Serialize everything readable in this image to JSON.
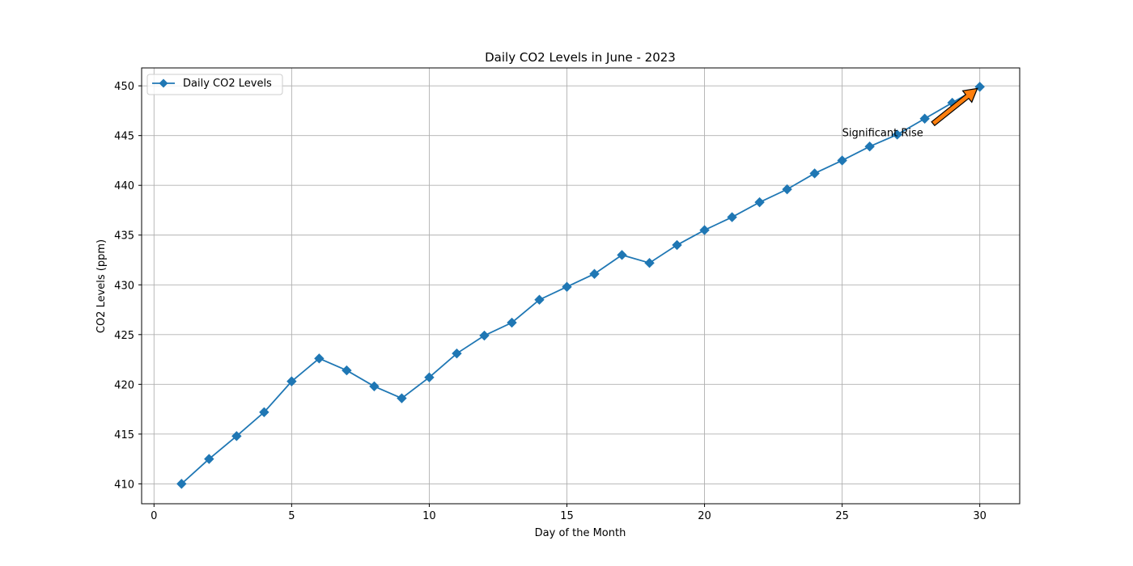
{
  "chart_data": {
    "type": "line",
    "title": "Daily CO2 Levels in June - 2023",
    "xlabel": "Day of the Month",
    "ylabel": "CO2 Levels (ppm)",
    "xlim": [
      -0.45,
      31.45
    ],
    "ylim": [
      408.0,
      451.8
    ],
    "xticks": [
      0,
      5,
      10,
      15,
      20,
      25,
      30
    ],
    "yticks": [
      410,
      415,
      420,
      425,
      430,
      435,
      440,
      445,
      450
    ],
    "grid": true,
    "legend_position": "upper-left",
    "series": [
      {
        "name": "Daily CO2 Levels",
        "color": "#1f77b4",
        "marker": "diamond",
        "x": [
          1,
          2,
          3,
          4,
          5,
          6,
          7,
          8,
          9,
          10,
          11,
          12,
          13,
          14,
          15,
          16,
          17,
          18,
          19,
          20,
          21,
          22,
          23,
          24,
          25,
          26,
          27,
          28,
          29,
          30
        ],
        "y": [
          410.0,
          412.5,
          414.8,
          417.2,
          420.3,
          422.6,
          421.4,
          419.8,
          418.6,
          420.7,
          423.1,
          424.9,
          426.2,
          428.5,
          429.8,
          431.1,
          433.0,
          432.2,
          434.0,
          435.5,
          436.8,
          438.3,
          439.6,
          441.2,
          442.5,
          443.9,
          445.1,
          446.7,
          448.3,
          449.9
        ]
      }
    ],
    "annotations": [
      {
        "text": "Significant Rise",
        "text_xy": [
          25,
          445
        ],
        "point_xy": [
          30,
          449.9
        ],
        "arrow_color": "#ff7f0e"
      }
    ]
  }
}
